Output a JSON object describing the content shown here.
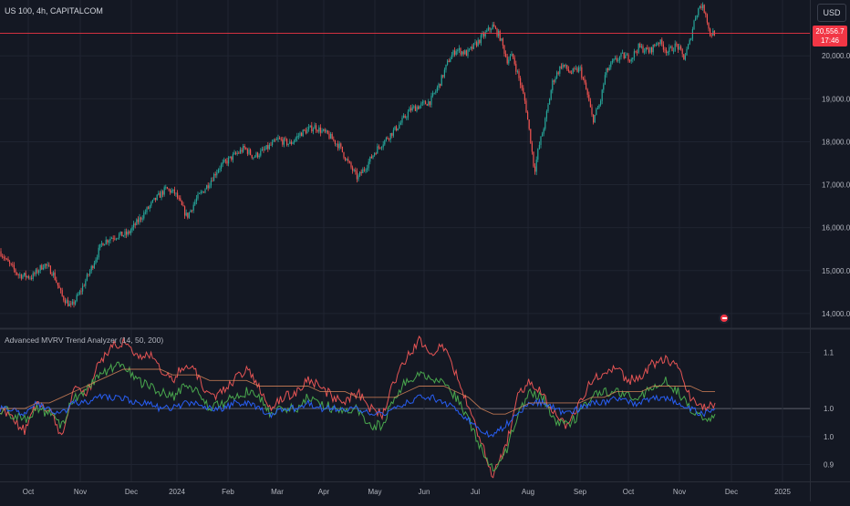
{
  "header": {
    "symbol_title": "US 100, 4h, CAPITALCOM",
    "currency_button": "USD"
  },
  "last_price": {
    "value": "20,556.7",
    "countdown": "17:46"
  },
  "colors": {
    "background": "#141823",
    "grid": "#1f2431",
    "up": "#26a69a",
    "down": "#ef5350",
    "last_price": "#f23645",
    "ind_red": "#f05757",
    "ind_green": "#4caf50",
    "ind_blue": "#2962ff",
    "ind_orange": "#e08a5b"
  },
  "icons": [
    "alert-flag-icon"
  ],
  "chart_data": [
    {
      "type": "candlestick",
      "title": "US 100, 4h, CAPITALCOM",
      "x_ticks": [
        "Oct",
        "Nov",
        "Dec",
        "2024",
        "Feb",
        "Mar",
        "Apr",
        "May",
        "Jun",
        "Jul",
        "Aug",
        "Sep",
        "Oct",
        "Nov",
        "Dec",
        "2025"
      ],
      "y_ticks": [
        "20,000.0",
        "19,000.0",
        "18,000.0",
        "17,000.0",
        "16,000.0",
        "15,000.0",
        "14,000.0"
      ],
      "ylim": [
        13700,
        21300
      ],
      "last_price": 20556.7,
      "grid": true,
      "series_close_path": [
        [
          0,
          15450
        ],
        [
          8,
          15200
        ],
        [
          20,
          14900
        ],
        [
          35,
          14850
        ],
        [
          48,
          15150
        ],
        [
          58,
          14950
        ],
        [
          68,
          14400
        ],
        [
          78,
          14150
        ],
        [
          88,
          14500
        ],
        [
          100,
          15050
        ],
        [
          112,
          15650
        ],
        [
          125,
          15800
        ],
        [
          140,
          15850
        ],
        [
          155,
          16250
        ],
        [
          170,
          16650
        ],
        [
          182,
          16900
        ],
        [
          192,
          16800
        ],
        [
          205,
          16250
        ],
        [
          215,
          16650
        ],
        [
          228,
          17000
        ],
        [
          240,
          17400
        ],
        [
          255,
          17650
        ],
        [
          268,
          17850
        ],
        [
          278,
          17650
        ],
        [
          290,
          17800
        ],
        [
          305,
          18050
        ],
        [
          318,
          17950
        ],
        [
          330,
          18200
        ],
        [
          345,
          18350
        ],
        [
          360,
          18150
        ],
        [
          372,
          17900
        ],
        [
          382,
          17500
        ],
        [
          392,
          17150
        ],
        [
          402,
          17450
        ],
        [
          412,
          17800
        ],
        [
          425,
          18100
        ],
        [
          438,
          18400
        ],
        [
          450,
          18750
        ],
        [
          462,
          18850
        ],
        [
          472,
          18950
        ],
        [
          482,
          19350
        ],
        [
          492,
          19900
        ],
        [
          500,
          20150
        ],
        [
          512,
          20050
        ],
        [
          525,
          20350
        ],
        [
          540,
          20700
        ],
        [
          548,
          20450
        ],
        [
          556,
          19900
        ],
        [
          562,
          20000
        ],
        [
          570,
          19400
        ],
        [
          576,
          18900
        ],
        [
          582,
          18000
        ],
        [
          586,
          17300
        ],
        [
          590,
          17800
        ],
        [
          598,
          18500
        ],
        [
          606,
          19400
        ],
        [
          616,
          19800
        ],
        [
          626,
          19600
        ],
        [
          636,
          19700
        ],
        [
          644,
          19100
        ],
        [
          650,
          18500
        ],
        [
          658,
          18900
        ],
        [
          664,
          19600
        ],
        [
          672,
          19850
        ],
        [
          682,
          20000
        ],
        [
          692,
          19950
        ],
        [
          700,
          20200
        ],
        [
          712,
          20100
        ],
        [
          722,
          20350
        ],
        [
          732,
          20100
        ],
        [
          742,
          20250
        ],
        [
          750,
          19950
        ],
        [
          756,
          20300
        ],
        [
          762,
          20900
        ],
        [
          768,
          21200
        ],
        [
          774,
          21000
        ],
        [
          778,
          20500
        ],
        [
          784,
          20550
        ]
      ]
    },
    {
      "type": "line",
      "title": "Advanced MVRV Trend Analyzer (14, 50, 200)",
      "y_ticks": [
        "1.1",
        "1.0",
        "1.0",
        "0.9"
      ],
      "ylim": [
        0.87,
        1.14
      ],
      "reference_line": 1.0,
      "grid": true,
      "series": [
        {
          "color": "red",
          "values": [
            1.0,
            0.98,
            0.96,
            1.01,
            1.0,
            0.95,
            1.04,
            1.02,
            1.08,
            1.11,
            1.12,
            1.09,
            1.1,
            1.07,
            1.05,
            1.08,
            1.06,
            1.02,
            1.03,
            1.05,
            1.07,
            1.04,
            1.0,
            1.02,
            1.03,
            1.05,
            1.04,
            1.02,
            1.01,
            1.03,
            1.0,
            0.99,
            1.05,
            1.09,
            1.12,
            1.1,
            1.11,
            1.06,
            1.0,
            0.94,
            0.88,
            0.93,
            1.02,
            1.05,
            1.03,
            0.99,
            0.97,
            1.01,
            1.05,
            1.06,
            1.07,
            1.05,
            1.06,
            1.08,
            1.09,
            1.07,
            1.02,
            1.0,
            1.01
          ]
        },
        {
          "color": "green",
          "values": [
            1.0,
            0.99,
            0.98,
            1.0,
            0.99,
            0.97,
            1.02,
            1.03,
            1.06,
            1.07,
            1.08,
            1.05,
            1.04,
            1.03,
            1.02,
            1.04,
            1.03,
            1.0,
            1.01,
            1.02,
            1.03,
            1.02,
            0.99,
            1.0,
            1.0,
            1.02,
            1.01,
            1.0,
            0.99,
            1.0,
            0.97,
            0.97,
            1.02,
            1.05,
            1.06,
            1.05,
            1.05,
            1.02,
            0.98,
            0.93,
            0.89,
            0.92,
            0.99,
            1.03,
            1.02,
            0.98,
            0.97,
            0.99,
            1.02,
            1.03,
            1.03,
            1.02,
            1.02,
            1.04,
            1.05,
            1.03,
            1.0,
            0.98,
            0.99
          ]
        },
        {
          "color": "blue",
          "values": [
            1.0,
            1.0,
            0.99,
            1.01,
            1.0,
            0.99,
            1.01,
            1.01,
            1.02,
            1.02,
            1.02,
            1.01,
            1.01,
            1.0,
            1.0,
            1.01,
            1.01,
            1.0,
            1.0,
            1.01,
            1.01,
            1.0,
            0.99,
            1.0,
            1.0,
            1.01,
            1.0,
            1.0,
            1.0,
            1.0,
            0.99,
            0.99,
            1.0,
            1.01,
            1.02,
            1.02,
            1.01,
            1.0,
            0.98,
            0.96,
            0.95,
            0.97,
            0.99,
            1.01,
            1.01,
            1.0,
            0.99,
            1.0,
            1.01,
            1.01,
            1.02,
            1.01,
            1.01,
            1.02,
            1.02,
            1.01,
            1.0,
            0.99,
            1.0
          ]
        },
        {
          "color": "orange",
          "values": [
            1.0,
            1.0,
            1.0,
            1.01,
            1.01,
            1.02,
            1.03,
            1.04,
            1.05,
            1.06,
            1.07,
            1.07,
            1.07,
            1.07,
            1.06,
            1.06,
            1.06,
            1.05,
            1.05,
            1.05,
            1.05,
            1.04,
            1.04,
            1.04,
            1.04,
            1.04,
            1.03,
            1.03,
            1.03,
            1.02,
            1.02,
            1.02,
            1.02,
            1.03,
            1.04,
            1.04,
            1.04,
            1.03,
            1.02,
            1.0,
            0.99,
            0.99,
            1.0,
            1.01,
            1.01,
            1.01,
            1.01,
            1.01,
            1.02,
            1.02,
            1.03,
            1.03,
            1.03,
            1.04,
            1.04,
            1.04,
            1.04,
            1.03,
            1.03
          ]
        }
      ]
    }
  ]
}
